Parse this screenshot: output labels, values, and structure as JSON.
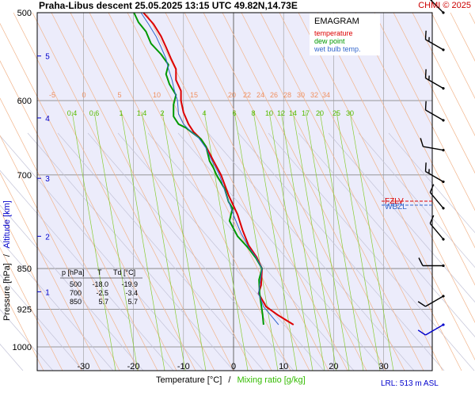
{
  "header": {
    "title": "Praha-Libus   descent   25.05.2025 13:15 UTC  49.82N,14.73E",
    "credit": "CHMI © 2025"
  },
  "legend": {
    "title": "EMAGRAM",
    "items": [
      {
        "label": "temperature",
        "color": "#dd0000"
      },
      {
        "label": "dew point",
        "color": "#009900"
      },
      {
        "label": "wet bulb temp.",
        "color": "#3366cc"
      }
    ]
  },
  "axes": {
    "xlabel_temp": "Temperature [°C]",
    "xlabel_sep": "/",
    "xlabel_mix": "Mixing ratio [g/kg]",
    "ylabel_pressure": "Pressure [hPa]",
    "ylabel_sep": "/",
    "ylabel_alt": "Altitude [km]",
    "lrl": "LRL: 513 m ASL"
  },
  "table": {
    "headers": [
      "p [hPa]",
      "T",
      "Td [°C]"
    ],
    "rows": [
      [
        "500",
        "-18.0",
        "-19.9"
      ],
      [
        "700",
        "-2.5",
        "-3.4"
      ],
      [
        "850",
        "5.7",
        "5.7"
      ]
    ]
  },
  "markers": {
    "fzl": "FZLV",
    "wbzl": "WBZL"
  },
  "chart_data": {
    "type": "line",
    "title": "EMAGRAM",
    "xlim": [
      -39,
      40
    ],
    "ylim": [
      500,
      1000
    ],
    "y_scale": "log",
    "x_ticks": [
      -30,
      -20,
      -10,
      0,
      10,
      20,
      30
    ],
    "y_ticks": [
      500,
      600,
      700,
      850,
      925,
      1000
    ],
    "altitude_ticks": [
      {
        "km": "1",
        "p": 892
      },
      {
        "km": "2",
        "p": 795
      },
      {
        "km": "3",
        "p": 705
      },
      {
        "km": "4",
        "p": 622
      },
      {
        "km": "5",
        "p": 547
      }
    ],
    "dry_adiabat_labels": [
      "-5",
      "0",
      "5",
      "10",
      "15",
      "20",
      "22",
      "24",
      "26",
      "28",
      "30",
      "32",
      "34"
    ],
    "mixing_ratio_labels": [
      "0.4",
      "0.6",
      "1",
      "1.4",
      "2",
      "4",
      "6",
      "8",
      "10",
      "12",
      "14",
      "17",
      "20",
      "25",
      "30"
    ],
    "series": [
      {
        "name": "temperature",
        "color": "#dd0000",
        "points": [
          [
            12,
            955
          ],
          [
            9,
            937
          ],
          [
            6.5,
            920
          ],
          [
            5,
            895
          ],
          [
            5.5,
            880
          ],
          [
            5.7,
            850
          ],
          [
            4.6,
            830
          ],
          [
            3,
            810
          ],
          [
            1.8,
            785
          ],
          [
            0.8,
            760
          ],
          [
            -1,
            730
          ],
          [
            -2.5,
            700
          ],
          [
            -4,
            680
          ],
          [
            -5.5,
            660
          ],
          [
            -6.5,
            650
          ],
          [
            -8,
            640
          ],
          [
            -9,
            630
          ],
          [
            -10,
            615
          ],
          [
            -10.5,
            600
          ],
          [
            -10.5,
            588
          ],
          [
            -11.5,
            575
          ],
          [
            -11.5,
            562
          ],
          [
            -12.5,
            550
          ],
          [
            -13.5,
            537
          ],
          [
            -14.5,
            525
          ],
          [
            -16,
            512
          ],
          [
            -18,
            500
          ]
        ]
      },
      {
        "name": "dew point",
        "color": "#009900",
        "points": [
          [
            6,
            955
          ],
          [
            5.8,
            935
          ],
          [
            5.5,
            915
          ],
          [
            5.2,
            895
          ],
          [
            5.1,
            870
          ],
          [
            5.7,
            850
          ],
          [
            4.5,
            832
          ],
          [
            3,
            815
          ],
          [
            0.8,
            795
          ],
          [
            -0.8,
            770
          ],
          [
            -0.2,
            750
          ],
          [
            -1,
            740
          ],
          [
            -1.8,
            720
          ],
          [
            -3.4,
            700
          ],
          [
            -4,
            690
          ],
          [
            -4.8,
            680
          ],
          [
            -5.2,
            668
          ],
          [
            -5.5,
            660
          ],
          [
            -6.5,
            650
          ],
          [
            -8.5,
            640
          ],
          [
            -9.5,
            635
          ],
          [
            -11,
            630
          ],
          [
            -12,
            620
          ],
          [
            -12,
            605
          ],
          [
            -11.5,
            593
          ],
          [
            -12.8,
            580
          ],
          [
            -13.5,
            568
          ],
          [
            -13,
            557
          ],
          [
            -14.5,
            545
          ],
          [
            -16.5,
            533
          ],
          [
            -17.5,
            520
          ],
          [
            -19,
            510
          ],
          [
            -19.9,
            500
          ]
        ]
      },
      {
        "name": "wet bulb temp.",
        "color": "#3366cc",
        "points": [
          [
            9,
            955
          ],
          [
            7.5,
            937
          ],
          [
            6,
            920
          ],
          [
            5,
            895
          ],
          [
            5.3,
            875
          ],
          [
            5.7,
            850
          ],
          [
            4.5,
            830
          ],
          [
            3,
            813
          ],
          [
            1.5,
            790
          ],
          [
            0.2,
            765
          ],
          [
            -1.2,
            735
          ],
          [
            -2.8,
            700
          ],
          [
            -4.3,
            680
          ],
          [
            -5.5,
            662
          ],
          [
            -7,
            648
          ],
          [
            -9,
            637
          ],
          [
            -10,
            630
          ],
          [
            -11,
            617
          ],
          [
            -11.2,
            600
          ],
          [
            -11.8,
            588
          ],
          [
            -12.3,
            575
          ],
          [
            -13,
            562
          ],
          [
            -13.5,
            550
          ],
          [
            -14.5,
            537
          ],
          [
            -15.5,
            525
          ],
          [
            -17,
            512
          ],
          [
            -18.5,
            500
          ]
        ]
      }
    ],
    "wind_barbs": [
      {
        "p": 500,
        "dir": 315,
        "kt": 15
      },
      {
        "p": 540,
        "dir": 300,
        "kt": 15
      },
      {
        "p": 585,
        "dir": 300,
        "kt": 15
      },
      {
        "p": 625,
        "dir": 300,
        "kt": 10
      },
      {
        "p": 665,
        "dir": 280,
        "kt": 10
      },
      {
        "p": 710,
        "dir": 300,
        "kt": 15
      },
      {
        "p": 750,
        "dir": 320,
        "kt": 10
      },
      {
        "p": 800,
        "dir": 320,
        "kt": 10
      },
      {
        "p": 845,
        "dir": 270,
        "kt": 10
      },
      {
        "p": 900,
        "dir": 240,
        "kt": 10
      },
      {
        "p": 955,
        "dir": 240,
        "kt": 10
      }
    ]
  }
}
